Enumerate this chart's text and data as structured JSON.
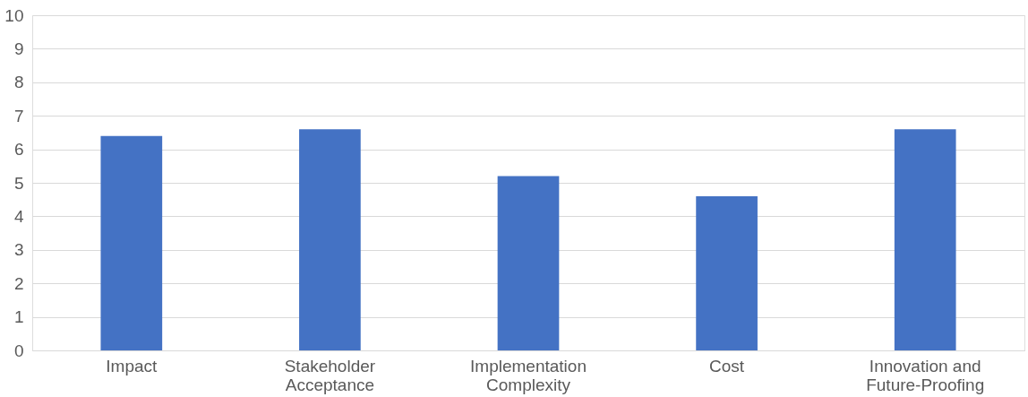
{
  "chart_data": {
    "type": "bar",
    "categories": [
      "Impact",
      "Stakeholder Acceptance",
      "Implementation Complexity",
      "Cost",
      "Innovation and Future-Proofing"
    ],
    "values": [
      6.4,
      6.6,
      5.2,
      4.6,
      6.6
    ],
    "color": "#4472c4",
    "ylim": [
      0,
      10
    ],
    "yticks": [
      0,
      1,
      2,
      3,
      4,
      5,
      6,
      7,
      8,
      9,
      10
    ],
    "grid": "y"
  }
}
